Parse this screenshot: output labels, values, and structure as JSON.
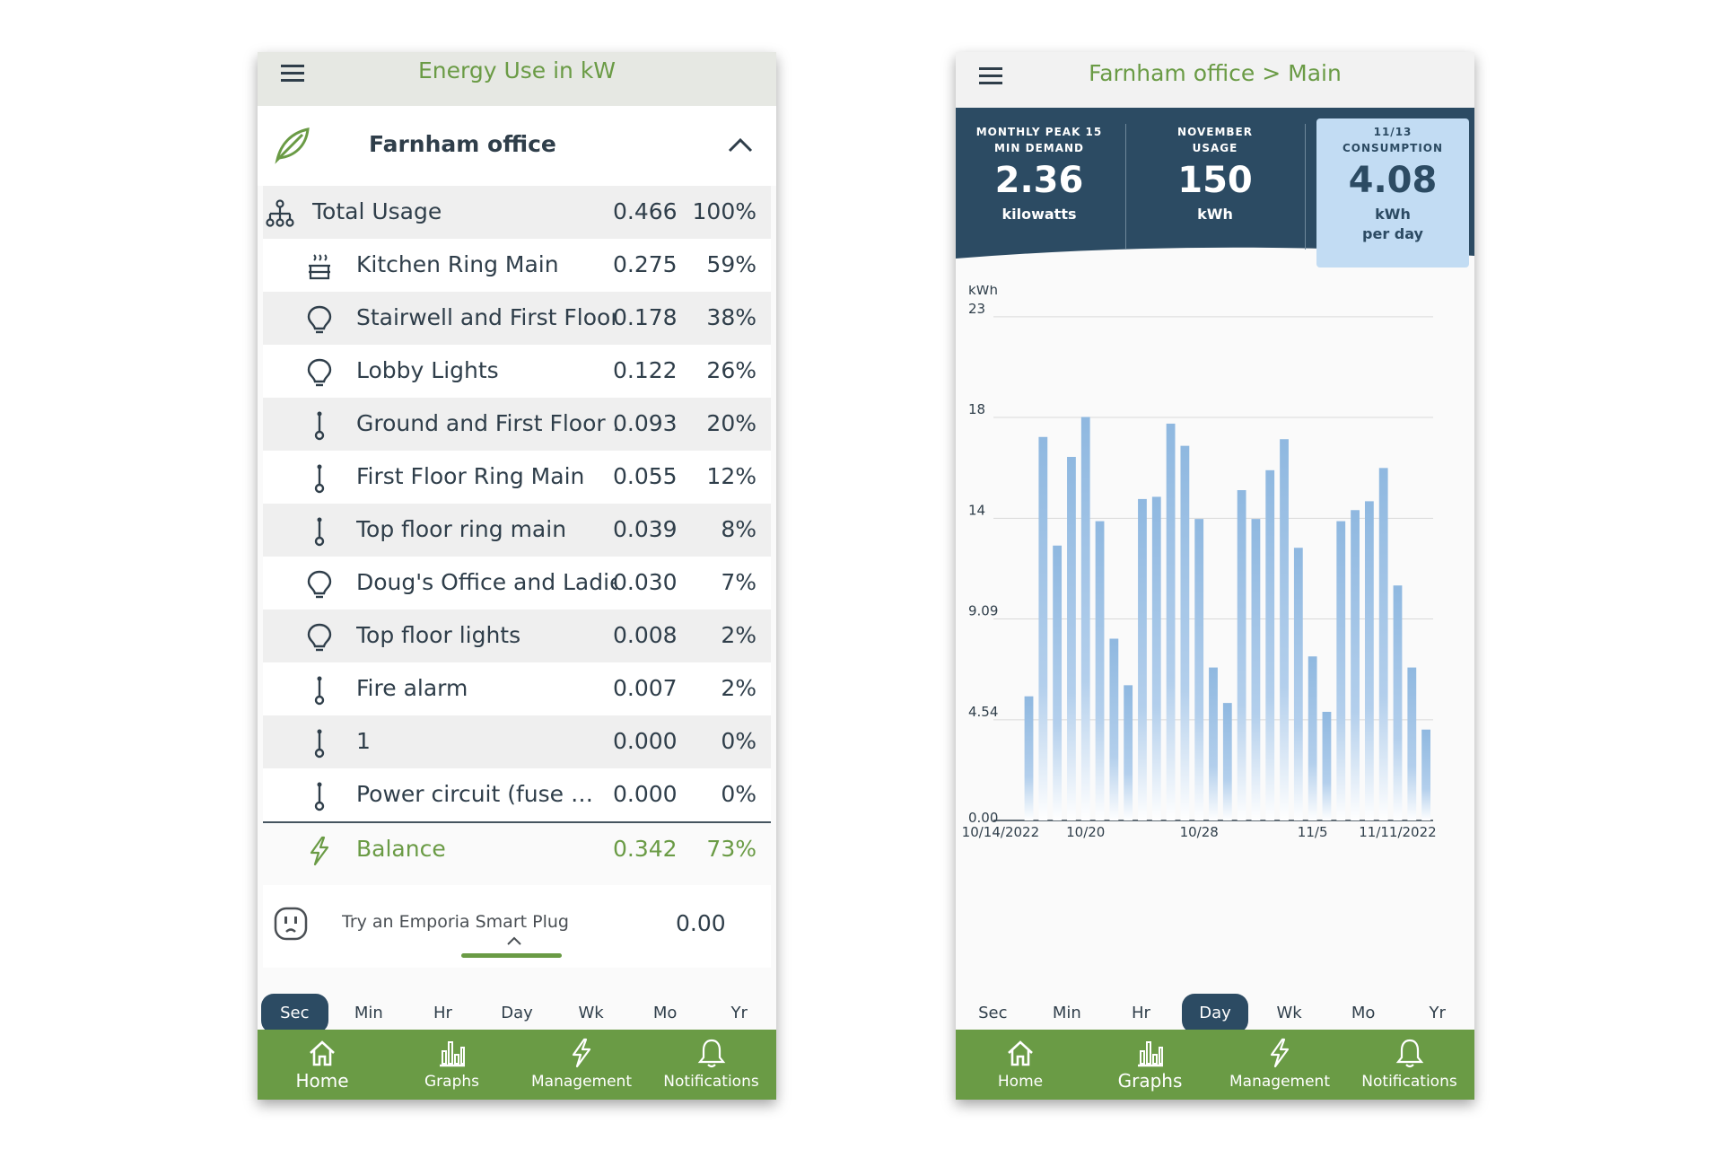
{
  "left": {
    "title": "Energy Use in kW",
    "site": "Farnham office",
    "total": {
      "name": "Total Usage",
      "value": "0.466",
      "percent": "100%"
    },
    "circuits": [
      {
        "name": "Kitchen Ring Main",
        "value": "0.275",
        "percent": "59%",
        "icon": "kitchen-icon"
      },
      {
        "name": "Stairwell and First Floor…",
        "value": "0.178",
        "percent": "38%",
        "icon": "lightbulb-icon"
      },
      {
        "name": "Lobby Lights",
        "value": "0.122",
        "percent": "26%",
        "icon": "lightbulb-icon"
      },
      {
        "name": "Ground and First Floor …",
        "value": "0.093",
        "percent": "20%",
        "icon": "outlet-plug-icon"
      },
      {
        "name": "First Floor Ring Main",
        "value": "0.055",
        "percent": "12%",
        "icon": "outlet-plug-icon"
      },
      {
        "name": "Top floor ring main",
        "value": "0.039",
        "percent": "8%",
        "icon": "outlet-plug-icon"
      },
      {
        "name": "Doug's Office and Ladie…",
        "value": "0.030",
        "percent": "7%",
        "icon": "lightbulb-icon"
      },
      {
        "name": "Top floor lights",
        "value": "0.008",
        "percent": "2%",
        "icon": "lightbulb-icon"
      },
      {
        "name": "Fire alarm",
        "value": "0.007",
        "percent": "2%",
        "icon": "outlet-plug-icon"
      },
      {
        "name": "1",
        "value": "0.000",
        "percent": "0%",
        "icon": "outlet-plug-icon"
      },
      {
        "name": "Power circuit (fuse …",
        "value": "0.000",
        "percent": "0%",
        "icon": "outlet-plug-icon"
      }
    ],
    "balance": {
      "name": "Balance",
      "value": "0.342",
      "percent": "73%"
    },
    "smart_plug": {
      "text": "Try an Emporia Smart Plug",
      "value": "0.00"
    },
    "time_scales": [
      "Sec",
      "Min",
      "Hr",
      "Day",
      "Wk",
      "Mo",
      "Yr"
    ],
    "active_time_scale": "Sec"
  },
  "right": {
    "title": "Farnham office > Main",
    "stats": [
      {
        "label_line1": "MONTHLY PEAK 15",
        "label_line2": "MIN DEMAND",
        "value": "2.36",
        "unit": "kilowatts",
        "unit2": ""
      },
      {
        "label_line1": "NOVEMBER",
        "label_line2": "USAGE",
        "value": "150",
        "unit": "kWh",
        "unit2": ""
      },
      {
        "label_line1": "11/13",
        "label_line2": "CONSUMPTION",
        "value": "4.08",
        "unit": "kWh",
        "unit2": "per day"
      }
    ],
    "time_scales": [
      "Sec",
      "Min",
      "Hr",
      "Day",
      "Wk",
      "Mo",
      "Yr"
    ],
    "active_time_scale": "Day"
  },
  "nav": [
    {
      "label": "Home",
      "icon": "home-icon"
    },
    {
      "label": "Graphs",
      "icon": "bar-chart-icon"
    },
    {
      "label": "Management",
      "icon": "lightning-icon"
    },
    {
      "label": "Notifications",
      "icon": "bell-icon"
    }
  ],
  "colors": {
    "brand_green": "#6a9b45",
    "navy": "#2c4b63",
    "bar_blue": "#8fb8e0",
    "highlight_blue": "#c2dcf3"
  },
  "chart_data": {
    "type": "bar",
    "ylabel": "kWh",
    "ylim": [
      0,
      23
    ],
    "y_ticks": [
      "0.00",
      "4.54",
      "9.09",
      "14",
      "18",
      "23"
    ],
    "y_tick_values": [
      0,
      4.54,
      9.09,
      13.63,
      18.18,
      22.72
    ],
    "x_tick_labels": [
      "10/14/2022",
      "10/20",
      "10/28",
      "11/5",
      "11/11/2022"
    ],
    "x_tick_days": [
      0,
      6,
      14,
      22,
      28
    ],
    "days_shown": 31,
    "grid": true,
    "values": [
      5.6,
      17.3,
      12.4,
      16.4,
      18.2,
      13.5,
      8.2,
      6.1,
      14.5,
      14.6,
      17.9,
      16.9,
      13.6,
      6.9,
      5.3,
      14.9,
      13.6,
      15.8,
      17.2,
      12.3,
      7.4,
      4.9,
      13.5,
      14.0,
      14.4,
      15.9,
      10.6,
      6.9,
      4.1
    ],
    "first_bar_day": 2
  }
}
